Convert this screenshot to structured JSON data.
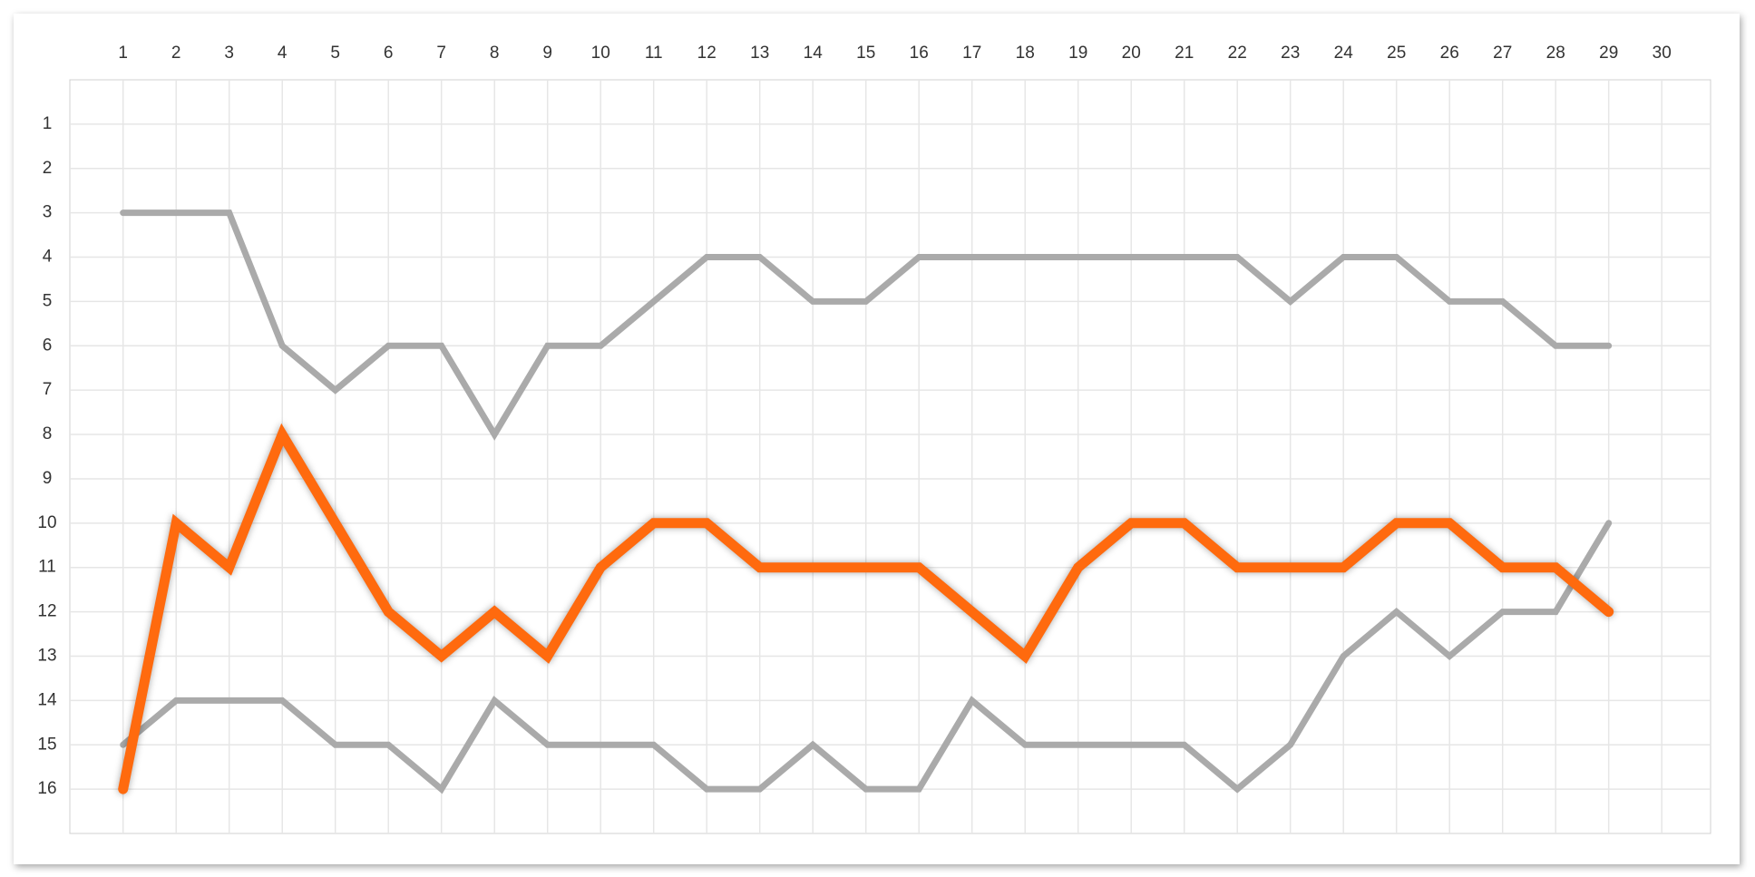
{
  "chart_data": {
    "type": "line",
    "categories": [
      "1",
      "2",
      "3",
      "4",
      "5",
      "6",
      "7",
      "8",
      "9",
      "10",
      "11",
      "12",
      "13",
      "14",
      "15",
      "16",
      "17",
      "18",
      "19",
      "20",
      "21",
      "22",
      "23",
      "24",
      "25",
      "26",
      "27",
      "28",
      "29",
      "30"
    ],
    "series": [
      {
        "color": "#aaaaaa",
        "values": [
          3,
          3,
          3,
          6,
          7,
          6,
          6,
          8,
          6,
          6,
          5,
          4,
          4,
          5,
          5,
          4,
          4,
          4,
          4,
          4,
          4,
          4,
          5,
          4,
          4,
          5,
          5,
          6,
          6,
          null
        ]
      },
      {
        "color": "#aaaaaa",
        "values": [
          15,
          14,
          14,
          14,
          15,
          15,
          16,
          14,
          15,
          15,
          15,
          16,
          16,
          15,
          16,
          16,
          14,
          15,
          15,
          15,
          15,
          16,
          15,
          13,
          12,
          13,
          12,
          12,
          10,
          null
        ]
      },
      {
        "color": "#ff6a0e",
        "values": [
          16,
          10,
          11,
          8,
          10,
          12,
          13,
          12,
          13,
          11,
          10,
          10,
          11,
          11,
          11,
          11,
          12,
          13,
          11,
          10,
          10,
          11,
          11,
          11,
          10,
          10,
          11,
          11,
          12,
          null
        ]
      }
    ],
    "ylim": [
      17,
      0
    ],
    "yticks": [
      1,
      2,
      3,
      4,
      5,
      6,
      7,
      8,
      9,
      10,
      11,
      12,
      13,
      14,
      15,
      16
    ],
    "grid": true
  }
}
